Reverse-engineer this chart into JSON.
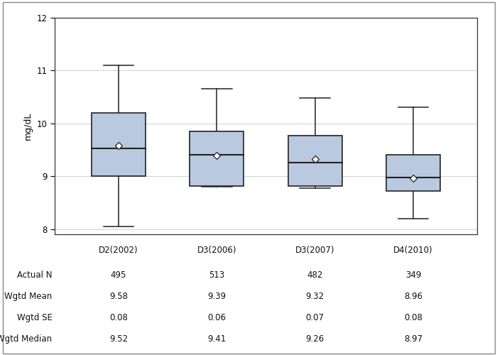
{
  "categories": [
    "D2(2002)",
    "D3(2006)",
    "D3(2007)",
    "D4(2010)"
  ],
  "box_data": [
    {
      "whisker_low": 8.05,
      "q1": 9.0,
      "median": 9.52,
      "q3": 10.2,
      "whisker_high": 11.1,
      "mean": 9.58
    },
    {
      "whisker_low": 8.8,
      "q1": 8.82,
      "median": 9.41,
      "q3": 9.85,
      "whisker_high": 10.65,
      "mean": 9.39
    },
    {
      "whisker_low": 8.78,
      "q1": 8.82,
      "median": 9.26,
      "q3": 9.77,
      "whisker_high": 10.48,
      "mean": 9.32
    },
    {
      "whisker_low": 8.2,
      "q1": 8.72,
      "median": 8.97,
      "q3": 9.4,
      "whisker_high": 10.3,
      "mean": 8.96
    }
  ],
  "actual_n": [
    495,
    513,
    482,
    349
  ],
  "wgtd_mean": [
    9.58,
    9.39,
    9.32,
    8.96
  ],
  "wgtd_se": [
    0.08,
    0.06,
    0.07,
    0.08
  ],
  "wgtd_median": [
    9.52,
    9.41,
    9.26,
    8.97
  ],
  "ylabel": "mg/dL",
  "ylim": [
    7.9,
    12.0
  ],
  "yticks": [
    8,
    9,
    10,
    11,
    12
  ],
  "box_color": "#b8c9e0",
  "box_edge_color": "#222222",
  "whisker_color": "#222222",
  "median_color": "#222222",
  "mean_marker_color": "white",
  "mean_marker_edge_color": "#222222",
  "background_color": "#ffffff",
  "plot_bg_color": "#ffffff",
  "table_row_labels": [
    "Actual N",
    "Wgtd Mean",
    "Wgtd SE",
    "Wgtd Median"
  ],
  "box_width": 0.55,
  "fig_width": 7.0,
  "fig_height": 5.0
}
